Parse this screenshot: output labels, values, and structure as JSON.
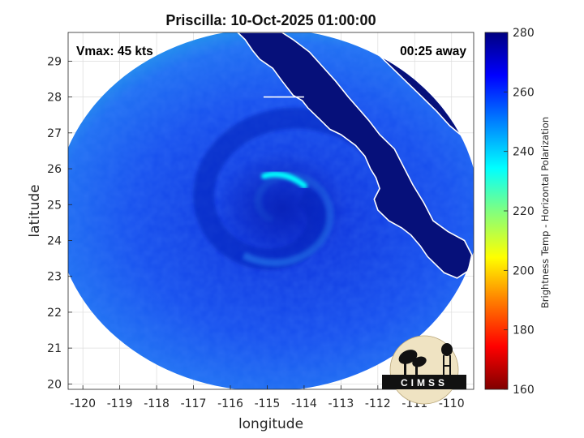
{
  "title": "Priscilla: 10-Oct-2025 01:00:00",
  "annotations": {
    "vmax": "Vmax: 45 kts",
    "time_away": "00:25 away"
  },
  "logo": {
    "text": "CIMSS"
  },
  "colors": {
    "colormap": [
      "#000080",
      "#0000ff",
      "#0080ff",
      "#00ffff",
      "#80ff80",
      "#ffff00",
      "#ff8000",
      "#ff0000",
      "#800000"
    ],
    "land": "#06107a",
    "coast": "#ffffff"
  },
  "chart_data": {
    "type": "heatmap",
    "xlabel": "longitude",
    "ylabel": "latitude",
    "xlim": [
      -120.4,
      -109.4
    ],
    "ylim": [
      19.85,
      29.8
    ],
    "xticks": [
      -120,
      -119,
      -118,
      -117,
      -116,
      -115,
      -114,
      -113,
      -112,
      -111,
      -110
    ],
    "yticks": [
      20,
      21,
      22,
      23,
      24,
      25,
      26,
      27,
      28,
      29
    ],
    "grid": true,
    "colorbar": {
      "label": "Brightness Temp - Horizontal Polarization",
      "min": 160,
      "max": 280,
      "ticks": [
        160,
        180,
        200,
        220,
        240,
        260,
        280
      ],
      "position": "right"
    },
    "storm_center": {
      "lon": -114.6,
      "lat": 24.9
    },
    "warm_band": {
      "lon": -114.6,
      "lat": 25.75,
      "value": 228
    },
    "swath_edge_min_value": 232,
    "background_value": 255,
    "land_value": 275,
    "coastline": [
      [
        -115.8,
        29.8
      ],
      [
        -115.6,
        29.6
      ],
      [
        -115.4,
        29.3
      ],
      [
        -115.2,
        29.05
      ],
      [
        -114.85,
        28.8
      ],
      [
        -114.6,
        28.45
      ],
      [
        -114.3,
        28.05
      ],
      [
        -114.05,
        27.9
      ],
      [
        -113.9,
        27.7
      ],
      [
        -113.55,
        27.35
      ],
      [
        -113.3,
        27.1
      ],
      [
        -113.0,
        26.95
      ],
      [
        -112.6,
        26.65
      ],
      [
        -112.35,
        26.35
      ],
      [
        -112.2,
        26.0
      ],
      [
        -112.05,
        25.75
      ],
      [
        -111.95,
        25.45
      ],
      [
        -112.1,
        25.15
      ],
      [
        -112.0,
        24.85
      ],
      [
        -111.7,
        24.55
      ],
      [
        -111.35,
        24.35
      ],
      [
        -111.1,
        24.15
      ],
      [
        -110.85,
        23.85
      ],
      [
        -110.65,
        23.55
      ],
      [
        -110.2,
        23.1
      ],
      [
        -109.85,
        22.95
      ],
      [
        -109.55,
        23.15
      ],
      [
        -109.45,
        23.6
      ],
      [
        -109.65,
        24.0
      ],
      [
        -110.1,
        24.25
      ],
      [
        -110.5,
        24.55
      ],
      [
        -110.75,
        25.05
      ],
      [
        -111.05,
        25.55
      ],
      [
        -111.3,
        26.05
      ],
      [
        -111.55,
        26.55
      ],
      [
        -111.95,
        26.95
      ],
      [
        -112.25,
        27.35
      ],
      [
        -112.5,
        27.65
      ],
      [
        -112.8,
        28.0
      ],
      [
        -113.15,
        28.45
      ],
      [
        -113.5,
        28.85
      ],
      [
        -113.85,
        29.25
      ],
      [
        -114.3,
        29.6
      ],
      [
        -114.6,
        29.8
      ]
    ],
    "mainland_coast": [
      [
        -112.6,
        29.8
      ],
      [
        -112.1,
        29.3
      ],
      [
        -111.6,
        28.8
      ],
      [
        -111.2,
        28.4
      ],
      [
        -110.8,
        28.0
      ],
      [
        -110.4,
        27.6
      ],
      [
        -110.05,
        27.2
      ],
      [
        -109.7,
        26.9
      ],
      [
        -109.4,
        26.65
      ]
    ],
    "border": [
      [
        -115.1,
        28.0
      ],
      [
        -114.0,
        28.0
      ]
    ],
    "swath": {
      "center_lon": -115.0,
      "center_lat": 24.85,
      "radius_lon": 5.75,
      "radius_lat": 5.05
    }
  }
}
